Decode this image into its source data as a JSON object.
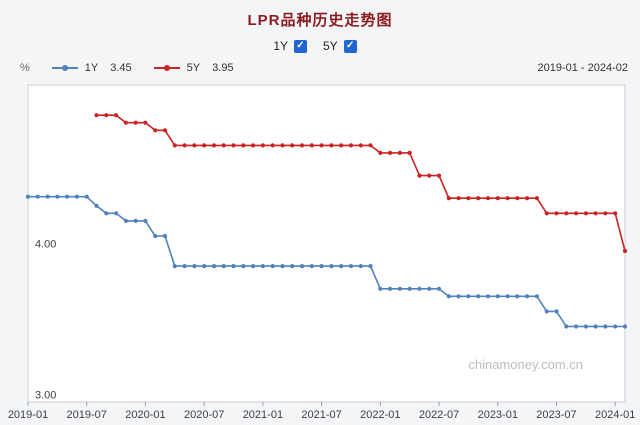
{
  "header": {
    "title": "LPR品种历史走势图"
  },
  "toggles": {
    "items": [
      {
        "label": "1Y",
        "checked": true
      },
      {
        "label": "5Y",
        "checked": true
      }
    ],
    "check_glyph": "✓"
  },
  "legend": {
    "unit": "%",
    "items": [
      {
        "label": "1Y",
        "value": "3.45"
      },
      {
        "label": "5Y",
        "value": "3.95"
      }
    ],
    "date_range": "2019-01 - 2024-02"
  },
  "chart": {
    "watermark": "chinamoney.com.cn"
  },
  "colors": {
    "title": "#8b1d21",
    "checkbox": "#2066d2",
    "series_1y": "#4f81bd",
    "series_5y": "#cc2222",
    "watermark": "#b9bdc2",
    "plot_border": "#c9ced3",
    "plot_background": "#ffffff"
  },
  "chart_data": {
    "type": "line",
    "title": "LPR品种历史走势图",
    "x_unit": "month",
    "x_start": "2019-01",
    "x_end": "2024-02",
    "x_tick_labels": [
      "2019-01",
      "2019-07",
      "2020-01",
      "2020-07",
      "2021-01",
      "2021-07",
      "2022-01",
      "2022-07",
      "2023-01",
      "2023-07",
      "2024-01"
    ],
    "x_tick_indices": [
      0,
      6,
      12,
      18,
      24,
      30,
      36,
      42,
      48,
      54,
      60
    ],
    "y_tick_labels": [
      "4.00",
      "3.00"
    ],
    "y_tick_values": [
      4.0,
      3.0
    ],
    "ylim": [
      2.95,
      5.05
    ],
    "grid": false,
    "legend_position": "top",
    "series": [
      {
        "name": "1Y",
        "color": "#4f81bd",
        "latest": 3.45,
        "values": [
          4.31,
          4.31,
          4.31,
          4.31,
          4.31,
          4.31,
          4.31,
          4.25,
          4.2,
          4.2,
          4.15,
          4.15,
          4.15,
          4.05,
          4.05,
          3.85,
          3.85,
          3.85,
          3.85,
          3.85,
          3.85,
          3.85,
          3.85,
          3.85,
          3.85,
          3.85,
          3.85,
          3.85,
          3.85,
          3.85,
          3.85,
          3.85,
          3.85,
          3.85,
          3.85,
          3.85,
          3.7,
          3.7,
          3.7,
          3.7,
          3.7,
          3.7,
          3.7,
          3.65,
          3.65,
          3.65,
          3.65,
          3.65,
          3.65,
          3.65,
          3.65,
          3.65,
          3.65,
          3.55,
          3.55,
          3.45,
          3.45,
          3.45,
          3.45,
          3.45,
          3.45,
          3.45
        ]
      },
      {
        "name": "5Y",
        "color": "#cc2222",
        "latest": 3.95,
        "values": [
          null,
          null,
          null,
          null,
          null,
          null,
          null,
          4.85,
          4.85,
          4.85,
          4.8,
          4.8,
          4.8,
          4.75,
          4.75,
          4.65,
          4.65,
          4.65,
          4.65,
          4.65,
          4.65,
          4.65,
          4.65,
          4.65,
          4.65,
          4.65,
          4.65,
          4.65,
          4.65,
          4.65,
          4.65,
          4.65,
          4.65,
          4.65,
          4.65,
          4.65,
          4.6,
          4.6,
          4.6,
          4.6,
          4.45,
          4.45,
          4.45,
          4.3,
          4.3,
          4.3,
          4.3,
          4.3,
          4.3,
          4.3,
          4.3,
          4.3,
          4.3,
          4.2,
          4.2,
          4.2,
          4.2,
          4.2,
          4.2,
          4.2,
          4.2,
          3.95
        ]
      }
    ]
  }
}
